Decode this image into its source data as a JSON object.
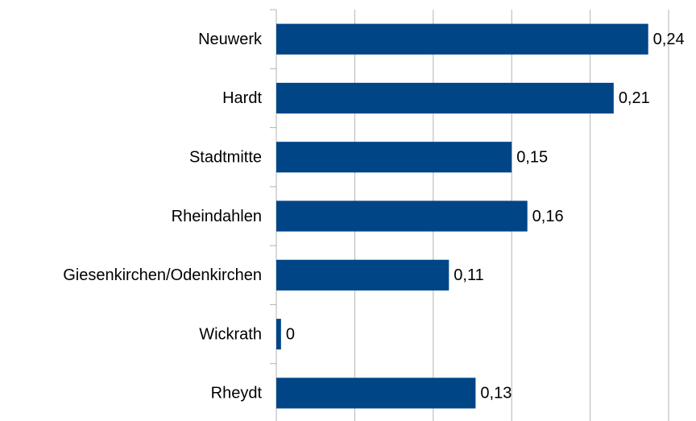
{
  "chart_data": {
    "type": "bar",
    "orientation": "horizontal",
    "categories": [
      "Neuwerk",
      "Hardt",
      "Stadtmitte",
      "Rheindahlen",
      "Giesenkirchen/Odenkirchen",
      "Wickrath",
      "Rheydt"
    ],
    "values": [
      0.237,
      0.215,
      0.15,
      0.16,
      0.11,
      0.003,
      0.127
    ],
    "value_labels": [
      "0,24",
      "0,21",
      "0,15",
      "0,16",
      "0,11",
      "0",
      "0,13"
    ],
    "color": "#004586",
    "xlim": [
      0,
      0.25
    ],
    "xticks": [
      0,
      0.05,
      0.1,
      0.15,
      0.2,
      0.25
    ],
    "grid": true
  }
}
